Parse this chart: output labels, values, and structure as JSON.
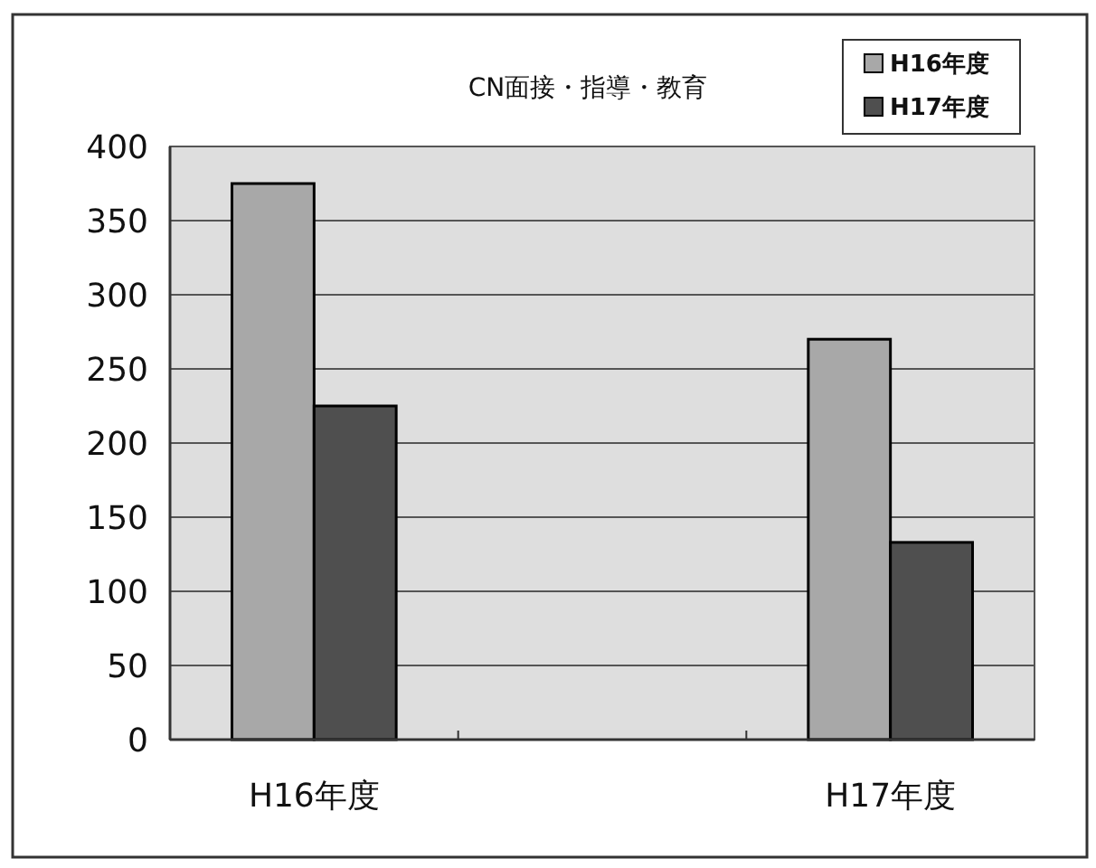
{
  "chart_data": {
    "type": "bar",
    "title": "CN面接・指導・教育",
    "categories": [
      "H16年度",
      null,
      "H17年度"
    ],
    "series": [
      {
        "name": "H16年度",
        "color": "#a8a8a8",
        "values": [
          375,
          null,
          270
        ]
      },
      {
        "name": "H17年度",
        "color": "#4f4f4f",
        "values": [
          225,
          null,
          133
        ]
      }
    ],
    "ylim": [
      0,
      400
    ],
    "yticks": [
      0,
      50,
      100,
      150,
      200,
      250,
      300,
      350,
      400
    ],
    "grid": "y",
    "legend": "top right"
  }
}
